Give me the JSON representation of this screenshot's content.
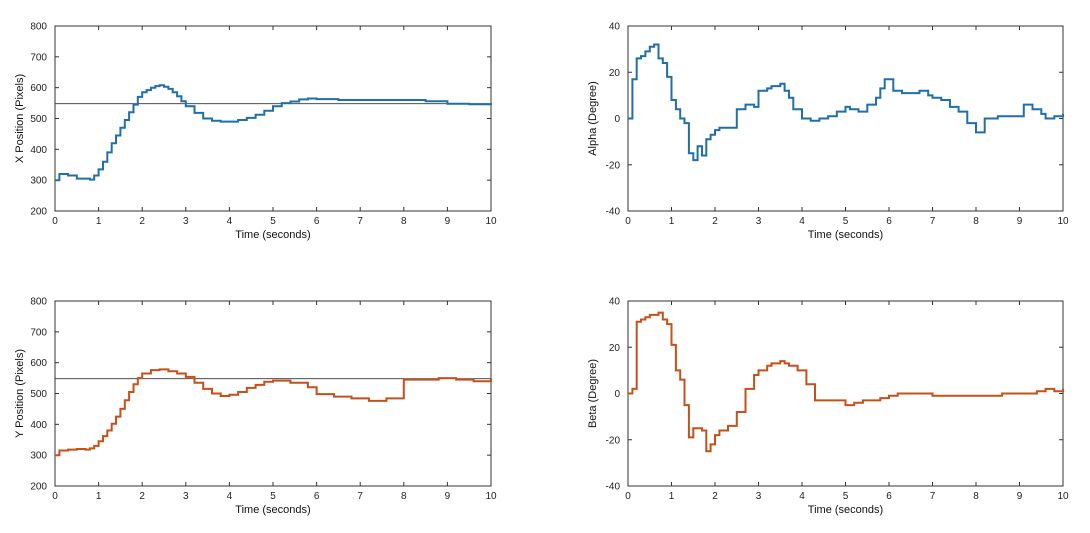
{
  "chart_data": [
    {
      "id": "x-position",
      "type": "line",
      "xlabel": "Time (seconds)",
      "ylabel": "X Position (Pixels)",
      "xlim": [
        0,
        10
      ],
      "ylim": [
        200,
        800
      ],
      "xticks": [
        "0",
        "1",
        "2",
        "3",
        "4",
        "5",
        "6",
        "7",
        "8",
        "9",
        "10"
      ],
      "yticks": [
        "200",
        "300",
        "400",
        "500",
        "600",
        "700",
        "800"
      ],
      "reference_line": 548,
      "color": "#1f6fa8",
      "series": [
        {
          "x": [
            0,
            0.1,
            0.3,
            0.5,
            0.8,
            0.9,
            1.0,
            1.1,
            1.2,
            1.3,
            1.4,
            1.5,
            1.6,
            1.7,
            1.8,
            1.9,
            2.0,
            2.1,
            2.2,
            2.3,
            2.4,
            2.5,
            2.6,
            2.7,
            2.8,
            2.9,
            3.0,
            3.2,
            3.4,
            3.6,
            3.8,
            4.0,
            4.2,
            4.4,
            4.6,
            4.8,
            5.0,
            5.2,
            5.4,
            5.6,
            5.8,
            6.0,
            6.5,
            7.0,
            7.5,
            8.0,
            8.5,
            9.0,
            9.5,
            10.0
          ],
          "y": [
            300,
            320,
            315,
            305,
            302,
            315,
            335,
            360,
            390,
            420,
            445,
            470,
            495,
            520,
            545,
            570,
            585,
            592,
            600,
            605,
            608,
            603,
            596,
            585,
            572,
            556,
            540,
            518,
            500,
            493,
            490,
            490,
            495,
            502,
            512,
            525,
            540,
            550,
            555,
            562,
            565,
            563,
            560,
            560,
            560,
            560,
            556,
            548,
            546,
            544
          ]
        }
      ]
    },
    {
      "id": "alpha",
      "type": "line",
      "xlabel": "Time (seconds)",
      "ylabel": "Alpha (Degree)",
      "xlim": [
        0,
        10
      ],
      "ylim": [
        -40,
        40
      ],
      "xticks": [
        "0",
        "1",
        "2",
        "3",
        "4",
        "5",
        "6",
        "7",
        "8",
        "9",
        "10"
      ],
      "yticks": [
        "-40",
        "-20",
        "0",
        "20",
        "40"
      ],
      "color": "#1f6fa8",
      "series": [
        {
          "x": [
            0,
            0.1,
            0.2,
            0.3,
            0.4,
            0.5,
            0.6,
            0.7,
            0.8,
            0.9,
            1.0,
            1.1,
            1.2,
            1.3,
            1.4,
            1.5,
            1.6,
            1.7,
            1.8,
            1.9,
            2.0,
            2.1,
            2.3,
            2.5,
            2.7,
            2.9,
            3.0,
            3.1,
            3.2,
            3.3,
            3.5,
            3.6,
            3.7,
            3.8,
            4.0,
            4.2,
            4.4,
            4.6,
            4.8,
            5.0,
            5.1,
            5.3,
            5.5,
            5.7,
            5.8,
            5.9,
            6.0,
            6.1,
            6.3,
            6.5,
            6.7,
            6.9,
            7.0,
            7.2,
            7.4,
            7.6,
            7.8,
            8.0,
            8.2,
            8.5,
            8.8,
            9.0,
            9.1,
            9.3,
            9.5,
            9.6,
            9.8,
            10.0
          ],
          "y": [
            0,
            17,
            26,
            27,
            29,
            31,
            32,
            26,
            24,
            18,
            8,
            4,
            0,
            -2,
            -15,
            -18,
            -12,
            -16,
            -9,
            -7,
            -5,
            -4,
            -4,
            4,
            6,
            5,
            12,
            12,
            13,
            14,
            15,
            12,
            9,
            4,
            0,
            -1,
            0,
            1,
            3,
            5,
            4,
            3,
            6,
            9,
            13,
            17,
            17,
            12,
            11,
            11,
            12,
            10,
            9,
            8,
            5,
            3,
            -2,
            -6,
            0,
            1,
            1,
            1,
            6,
            4,
            2,
            0,
            1,
            2
          ]
        }
      ]
    },
    {
      "id": "y-position",
      "type": "line",
      "xlabel": "Time (seconds)",
      "ylabel": "Y Position (Pixels)",
      "xlim": [
        0,
        10
      ],
      "ylim": [
        200,
        800
      ],
      "xticks": [
        "0",
        "1",
        "2",
        "3",
        "4",
        "5",
        "6",
        "7",
        "8",
        "9",
        "10"
      ],
      "yticks": [
        "200",
        "300",
        "400",
        "500",
        "600",
        "700",
        "800"
      ],
      "reference_line": 548,
      "color": "#c4501a",
      "series": [
        {
          "x": [
            0,
            0.1,
            0.3,
            0.5,
            0.7,
            0.8,
            0.9,
            1.0,
            1.1,
            1.2,
            1.3,
            1.4,
            1.5,
            1.6,
            1.7,
            1.8,
            1.9,
            2.0,
            2.2,
            2.4,
            2.6,
            2.8,
            3.0,
            3.2,
            3.4,
            3.6,
            3.8,
            4.0,
            4.2,
            4.4,
            4.6,
            4.8,
            5.0,
            5.4,
            5.8,
            6.0,
            6.4,
            6.8,
            7.2,
            7.6,
            8.0,
            8.4,
            8.8,
            9.2,
            9.6,
            10.0
          ],
          "y": [
            300,
            315,
            318,
            320,
            318,
            322,
            330,
            345,
            362,
            380,
            402,
            425,
            450,
            478,
            505,
            530,
            550,
            565,
            576,
            578,
            572,
            565,
            554,
            535,
            515,
            500,
            492,
            496,
            505,
            518,
            528,
            538,
            542,
            535,
            520,
            498,
            490,
            484,
            476,
            484,
            545,
            545,
            550,
            545,
            540,
            548
          ]
        }
      ]
    },
    {
      "id": "beta",
      "type": "line",
      "xlabel": "Time (seconds)",
      "ylabel": "Beta (Degree)",
      "xlim": [
        0,
        10
      ],
      "ylim": [
        -40,
        40
      ],
      "xticks": [
        "0",
        "1",
        "2",
        "3",
        "4",
        "5",
        "6",
        "7",
        "8",
        "9",
        "10"
      ],
      "yticks": [
        "-40",
        "-20",
        "0",
        "20",
        "40"
      ],
      "color": "#c4501a",
      "series": [
        {
          "x": [
            0,
            0.1,
            0.2,
            0.3,
            0.4,
            0.5,
            0.6,
            0.7,
            0.8,
            0.9,
            1.0,
            1.1,
            1.2,
            1.3,
            1.4,
            1.5,
            1.6,
            1.7,
            1.8,
            1.9,
            2.0,
            2.1,
            2.3,
            2.5,
            2.7,
            2.9,
            3.0,
            3.2,
            3.3,
            3.5,
            3.6,
            3.7,
            3.9,
            4.1,
            4.3,
            4.5,
            4.8,
            5.0,
            5.2,
            5.4,
            5.6,
            5.8,
            6.0,
            6.2,
            6.6,
            7.0,
            7.4,
            7.8,
            8.2,
            8.6,
            9.0,
            9.4,
            9.6,
            9.8,
            10.0
          ],
          "y": [
            0,
            2,
            31,
            32,
            33,
            34,
            34,
            35,
            32,
            30,
            21,
            10,
            6,
            -5,
            -19,
            -15,
            -15,
            -16,
            -25,
            -22,
            -18,
            -16,
            -14,
            -8,
            2,
            8,
            10,
            12,
            13,
            14,
            13,
            12,
            10,
            4,
            -3,
            -3,
            -3,
            -5,
            -4,
            -3,
            -3,
            -2,
            -1,
            0,
            0,
            -1,
            -1,
            -1,
            -1,
            0,
            0,
            1,
            2,
            1,
            2
          ]
        }
      ]
    }
  ]
}
